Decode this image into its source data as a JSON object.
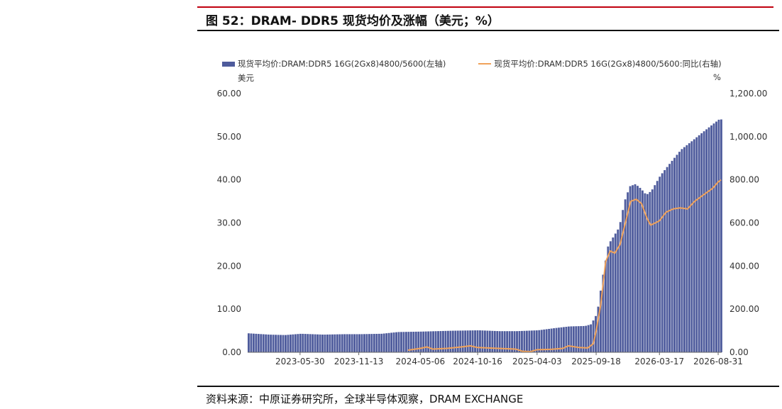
{
  "figure": {
    "title": "图 52：DRAM- DDR5 现货均价及涨幅（美元；%）",
    "source": "资料来源：中原证券研究所，全球半导体观察，DRAM EXCHANGE"
  },
  "colors": {
    "accent_red": "#c0000f",
    "bar": "#4e5b9c",
    "line": "#f0a25a"
  },
  "chart_data": {
    "type": "bar",
    "title": "",
    "legend": {
      "position": "top",
      "entries": [
        "现货平均价:DRAM:DDR5 16G(2Gx8)4800/5600(左轴)",
        "现货平均价:DRAM:DDR5 16G(2Gx8)4800/5600:同比(右轴)"
      ]
    },
    "left_axis": {
      "unit": "美元",
      "range": [
        0,
        60
      ],
      "ticks": [
        0,
        10,
        20,
        30,
        40,
        50,
        60
      ],
      "tick_labels": [
        "0.00",
        "10.00",
        "20.00",
        "30.00",
        "40.00",
        "50.00",
        "60.00"
      ]
    },
    "right_axis": {
      "unit": "%",
      "range": [
        0,
        1200
      ],
      "ticks": [
        0,
        200,
        400,
        600,
        800,
        1000,
        1200
      ],
      "tick_labels": [
        "0.00",
        "200.00",
        "400.00",
        "600.00",
        "800.00",
        "1,000.00",
        "1,200.00"
      ]
    },
    "x_axis": {
      "start": "2023-01-01",
      "end": "2026-09-10",
      "tick_labels": [
        "2023-05-30",
        "2023-11-13",
        "2024-05-06",
        "2024-10-16",
        "2025-04-03",
        "2025-09-18",
        "2026-03-17",
        "2026-08-31"
      ]
    },
    "series": [
      {
        "name": "现货平均价:DRAM:DDR5 16G(2Gx8)4800/5600(左轴)",
        "type": "bar",
        "axis": "left",
        "points": [
          [
            "2023-01-01",
            4.4
          ],
          [
            "2023-03-01",
            4.1
          ],
          [
            "2023-04-15",
            4.0
          ],
          [
            "2023-05-30",
            4.3
          ],
          [
            "2023-08-01",
            4.1
          ],
          [
            "2023-10-01",
            4.2
          ],
          [
            "2023-11-13",
            4.2
          ],
          [
            "2024-01-15",
            4.3
          ],
          [
            "2024-03-01",
            4.7
          ],
          [
            "2024-05-06",
            4.8
          ],
          [
            "2024-08-01",
            5.0
          ],
          [
            "2024-10-16",
            5.1
          ],
          [
            "2024-12-15",
            4.9
          ],
          [
            "2025-02-01",
            4.9
          ],
          [
            "2025-04-03",
            5.1
          ],
          [
            "2025-05-20",
            5.6
          ],
          [
            "2025-07-01",
            6.0
          ],
          [
            "2025-08-15",
            6.1
          ],
          [
            "2025-09-01",
            6.5
          ],
          [
            "2025-09-18",
            9.0
          ],
          [
            "2025-10-05",
            18.0
          ],
          [
            "2025-10-20",
            25.0
          ],
          [
            "2025-11-05",
            27.0
          ],
          [
            "2025-11-20",
            29.0
          ],
          [
            "2025-12-05",
            35.0
          ],
          [
            "2025-12-20",
            38.5
          ],
          [
            "2026-01-05",
            39.0
          ],
          [
            "2026-01-20",
            38.0
          ],
          [
            "2026-02-05",
            36.5
          ],
          [
            "2026-02-20",
            37.5
          ],
          [
            "2026-03-17",
            41.0
          ],
          [
            "2026-04-15",
            44.0
          ],
          [
            "2026-05-15",
            47.0
          ],
          [
            "2026-06-15",
            49.0
          ],
          [
            "2026-07-15",
            51.0
          ],
          [
            "2026-08-15",
            53.0
          ],
          [
            "2026-08-31",
            54.0
          ],
          [
            "2026-09-10",
            54.0
          ]
        ]
      },
      {
        "name": "现货平均价:DRAM:DDR5 16G(2Gx8)4800/5600:同比(右轴)",
        "type": "line",
        "axis": "right",
        "points": [
          [
            "2024-04-01",
            10
          ],
          [
            "2024-05-06",
            18
          ],
          [
            "2024-05-25",
            25
          ],
          [
            "2024-06-10",
            15
          ],
          [
            "2024-07-20",
            18
          ],
          [
            "2024-09-01",
            25
          ],
          [
            "2024-09-25",
            30
          ],
          [
            "2024-10-16",
            22
          ],
          [
            "2024-12-15",
            18
          ],
          [
            "2025-02-01",
            15
          ],
          [
            "2025-02-20",
            5
          ],
          [
            "2025-03-15",
            3
          ],
          [
            "2025-04-03",
            12
          ],
          [
            "2025-05-15",
            14
          ],
          [
            "2025-06-15",
            18
          ],
          [
            "2025-07-01",
            30
          ],
          [
            "2025-08-01",
            22
          ],
          [
            "2025-08-25",
            20
          ],
          [
            "2025-09-10",
            40
          ],
          [
            "2025-09-18",
            100
          ],
          [
            "2025-10-01",
            220
          ],
          [
            "2025-10-15",
            420
          ],
          [
            "2025-10-28",
            470
          ],
          [
            "2025-11-10",
            460
          ],
          [
            "2025-11-25",
            500
          ],
          [
            "2025-12-10",
            600
          ],
          [
            "2025-12-25",
            700
          ],
          [
            "2026-01-10",
            710
          ],
          [
            "2026-01-25",
            690
          ],
          [
            "2026-02-10",
            620
          ],
          [
            "2026-02-20",
            590
          ],
          [
            "2026-03-05",
            600
          ],
          [
            "2026-03-17",
            610
          ],
          [
            "2026-04-05",
            650
          ],
          [
            "2026-04-25",
            665
          ],
          [
            "2026-05-15",
            670
          ],
          [
            "2026-06-05",
            665
          ],
          [
            "2026-06-25",
            700
          ],
          [
            "2026-07-20",
            730
          ],
          [
            "2026-08-15",
            760
          ],
          [
            "2026-08-31",
            790
          ],
          [
            "2026-09-08",
            800
          ]
        ]
      }
    ]
  }
}
